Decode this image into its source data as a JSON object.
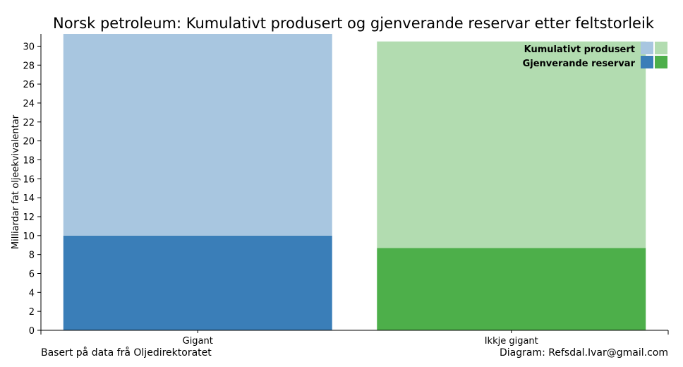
{
  "chart_data": {
    "type": "bar",
    "stacked": true,
    "title": "Norsk petroleum: Kumulativt produsert og gjenverande reservar etter feltstorleik",
    "xlabel": "",
    "ylabel": "Milliardar fat oljeekvivalentar",
    "ylim": [
      0,
      31.3
    ],
    "yticks": [
      0,
      2,
      4,
      6,
      8,
      10,
      12,
      14,
      16,
      18,
      20,
      22,
      24,
      26,
      28,
      30
    ],
    "categories": [
      "Gigant",
      "Ikkje gigant"
    ],
    "series": [
      {
        "name": "Gjenverande reservar",
        "values": [
          10.0,
          8.7
        ],
        "colors": [
          "#3a7eb8",
          "#4daf4a"
        ]
      },
      {
        "name": "Kumulativt produsert",
        "values": [
          21.3,
          21.8
        ],
        "colors": [
          "#a8c6e0",
          "#b2dcb0"
        ]
      }
    ],
    "legend_position": "top-right",
    "grid": false
  },
  "footer": {
    "left": "Basert på data frå Oljedirektoratet",
    "right": "Diagram: Refsdal.Ivar@gmail.com"
  }
}
